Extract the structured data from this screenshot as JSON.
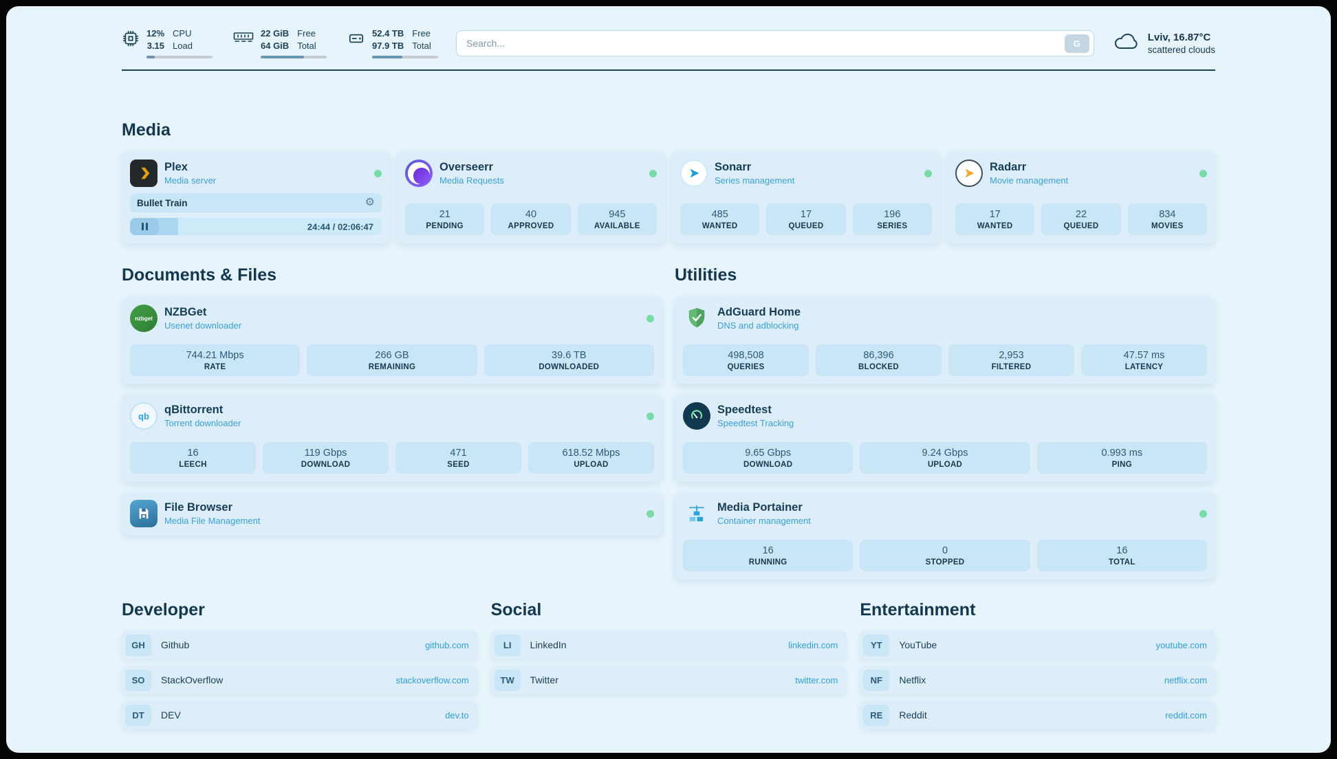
{
  "colors": {
    "page_background": "#e7f4fc",
    "card_background": "#ddeefa",
    "stat_box_background": "#c9e6f7",
    "text_primary": "#16374d",
    "subtitle_blue": "#39a0d6",
    "link_blue": "#2f9fd9",
    "status_online_green": "#79dca5",
    "plex_gold": "#e5a00d"
  },
  "topbar": {
    "cpu": {
      "value_top": "12%",
      "value_bottom": "3.15",
      "label_top": "CPU",
      "label_bottom": "Load",
      "progress": 12
    },
    "ram": {
      "value_top": "22 GiB",
      "value_bottom": "64 GiB",
      "label_top": "Free",
      "label_bottom": "Total",
      "progress": 66
    },
    "disk": {
      "value_top": "52.4 TB",
      "value_bottom": "97.9 TB",
      "label_top": "Free",
      "label_bottom": "Total",
      "progress": 46
    },
    "search": {
      "placeholder": "Search...",
      "button_label": "G"
    },
    "weather": {
      "location": "Lviv, 16.87°C",
      "condition": "scattered clouds"
    }
  },
  "icon_labels": {
    "nzbget": "nzbget",
    "qbittorrent": "qb"
  },
  "sections": {
    "media": {
      "title": "Media",
      "plex": {
        "name": "Plex",
        "subtitle": "Media server",
        "now_playing": "Bullet Train",
        "time": "24:44 / 02:06:47",
        "progress_percent": 19
      },
      "overseerr": {
        "name": "Overseerr",
        "subtitle": "Media Requests",
        "stats": [
          {
            "value": "21",
            "label": "PENDING"
          },
          {
            "value": "40",
            "label": "APPROVED"
          },
          {
            "value": "945",
            "label": "AVAILABLE"
          }
        ]
      },
      "sonarr": {
        "name": "Sonarr",
        "subtitle": "Series management",
        "stats": [
          {
            "value": "485",
            "label": "WANTED"
          },
          {
            "value": "17",
            "label": "QUEUED"
          },
          {
            "value": "196",
            "label": "SERIES"
          }
        ]
      },
      "radarr": {
        "name": "Radarr",
        "subtitle": "Movie management",
        "stats": [
          {
            "value": "17",
            "label": "WANTED"
          },
          {
            "value": "22",
            "label": "QUEUED"
          },
          {
            "value": "834",
            "label": "MOVIES"
          }
        ]
      }
    },
    "documents": {
      "title": "Documents & Files",
      "nzbget": {
        "name": "NZBGet",
        "subtitle": "Usenet downloader",
        "stats": [
          {
            "value": "744.21 Mbps",
            "label": "RATE"
          },
          {
            "value": "266 GB",
            "label": "REMAINING"
          },
          {
            "value": "39.6 TB",
            "label": "DOWNLOADED"
          }
        ]
      },
      "qbittorrent": {
        "name": "qBittorrent",
        "subtitle": "Torrent downloader",
        "stats": [
          {
            "value": "16",
            "label": "LEECH"
          },
          {
            "value": "119 Gbps",
            "label": "DOWNLOAD"
          },
          {
            "value": "471",
            "label": "SEED"
          },
          {
            "value": "618.52 Mbps",
            "label": "UPLOAD"
          }
        ]
      },
      "filebrowser": {
        "name": "File Browser",
        "subtitle": "Media File Management"
      }
    },
    "utilities": {
      "title": "Utilities",
      "adguard": {
        "name": "AdGuard Home",
        "subtitle": "DNS and adblocking",
        "stats": [
          {
            "value": "498,508",
            "label": "QUERIES"
          },
          {
            "value": "86,396",
            "label": "BLOCKED"
          },
          {
            "value": "2,953",
            "label": "FILTERED"
          },
          {
            "value": "47.57 ms",
            "label": "LATENCY"
          }
        ]
      },
      "speedtest": {
        "name": "Speedtest",
        "subtitle": "Speedtest Tracking",
        "stats": [
          {
            "value": "9.65 Gbps",
            "label": "DOWNLOAD"
          },
          {
            "value": "9.24 Gbps",
            "label": "UPLOAD"
          },
          {
            "value": "0.993 ms",
            "label": "PING"
          }
        ]
      },
      "portainer": {
        "name": "Media Portainer",
        "subtitle": "Container management",
        "stats": [
          {
            "value": "16",
            "label": "RUNNING"
          },
          {
            "value": "0",
            "label": "STOPPED"
          },
          {
            "value": "16",
            "label": "TOTAL"
          }
        ]
      }
    },
    "bookmarks": [
      {
        "title": "Developer",
        "items": [
          {
            "abbr": "GH",
            "name": "Github",
            "url": "github.com"
          },
          {
            "abbr": "SO",
            "name": "StackOverflow",
            "url": "stackoverflow.com"
          },
          {
            "abbr": "DT",
            "name": "DEV",
            "url": "dev.to"
          }
        ]
      },
      {
        "title": "Social",
        "items": [
          {
            "abbr": "LI",
            "name": "LinkedIn",
            "url": "linkedin.com"
          },
          {
            "abbr": "TW",
            "name": "Twitter",
            "url": "twitter.com"
          }
        ]
      },
      {
        "title": "Entertainment",
        "items": [
          {
            "abbr": "YT",
            "name": "YouTube",
            "url": "youtube.com"
          },
          {
            "abbr": "NF",
            "name": "Netflix",
            "url": "netflix.com"
          },
          {
            "abbr": "RE",
            "name": "Reddit",
            "url": "reddit.com"
          }
        ]
      }
    ]
  }
}
